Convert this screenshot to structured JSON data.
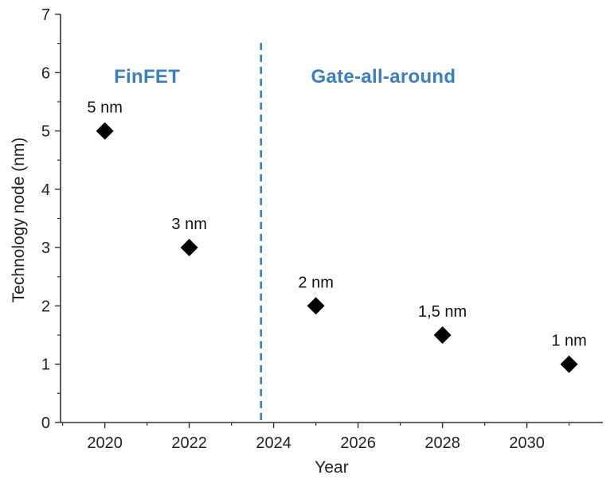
{
  "chart_data": {
    "type": "scatter",
    "title": "",
    "xlabel": "Year",
    "ylabel": "Technology node (nm)",
    "xlim": [
      2018.95,
      2031.8
    ],
    "ylim": [
      0,
      7
    ],
    "x_ticks": [
      2020,
      2022,
      2024,
      2026,
      2028,
      2030
    ],
    "x_tick_labels": [
      "2020",
      "2022",
      "2024",
      "2026",
      "2028",
      "2030"
    ],
    "y_ticks": [
      0,
      1,
      2,
      3,
      4,
      5,
      6,
      7
    ],
    "y_tick_labels": [
      "0",
      "1",
      "2",
      "3",
      "4",
      "5",
      "6",
      "7"
    ],
    "grid": false,
    "marker": "diamond",
    "marker_color": "#000000",
    "points": [
      {
        "x": 2020,
        "y": 5,
        "label": "5 nm"
      },
      {
        "x": 2022,
        "y": 3,
        "label": "3 nm"
      },
      {
        "x": 2025,
        "y": 2,
        "label": "2 nm"
      },
      {
        "x": 2028,
        "y": 1.5,
        "label": "1,5 nm"
      },
      {
        "x": 2031,
        "y": 1,
        "label": "1 nm"
      }
    ],
    "divider": {
      "x": 2023.7,
      "style": "dashed",
      "color": "#3a7fc1"
    },
    "regions": [
      {
        "label": "FinFET",
        "x": 2021.0,
        "color": "#3a7fc1"
      },
      {
        "label": "Gate-all-around",
        "x": 2026.6,
        "color": "#3a7fc1"
      }
    ]
  }
}
